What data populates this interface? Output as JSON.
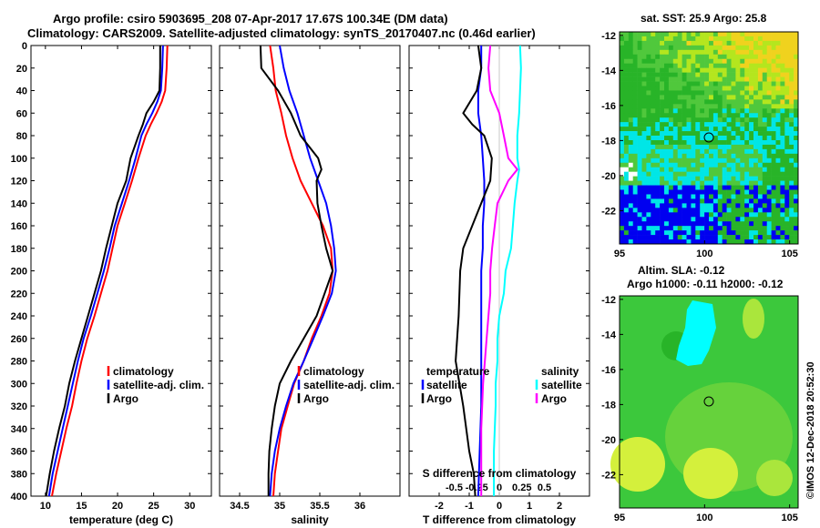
{
  "header": {
    "title_line1": "Argo profile: csiro 5903695_208 07-Apr-2017 17.67S 100.34E (DM data)",
    "title_line2": "Climatology: CARS2009. Satellite-adjusted climatology: synTS_20170407.nc (0.46d earlier)"
  },
  "map_sst": {
    "title": "sat. SST: 25.9 Argo: 25.8",
    "x_ticks": [
      "95",
      "100",
      "105"
    ],
    "y_ticks": [
      "-12",
      "-14",
      "-16",
      "-18",
      "-20",
      "-22"
    ]
  },
  "map_sla": {
    "title_line1": "Altim. SLA: -0.12",
    "title_line2": "Argo h1000: -0.11 h2000: -0.12",
    "x_ticks": [
      "95",
      "100",
      "105"
    ],
    "y_ticks": [
      "-12",
      "-14",
      "-16",
      "-18",
      "-20",
      "-22"
    ]
  },
  "credit": "©IMOS 12-Dec-2018 20:52:30",
  "colors": {
    "climatology": "#ff0000",
    "satellite": "#0000ff",
    "argo": "#000000",
    "sat_sal": "#00ffff",
    "argo_sal": "#ff00ff"
  },
  "chart_data": [
    {
      "type": "line",
      "id": "temperature",
      "xlabel": "temperature (deg C)",
      "ylabel": "",
      "xlim": [
        8,
        33
      ],
      "ylim": [
        400,
        0
      ],
      "x_ticks": [
        10,
        15,
        20,
        25,
        30
      ],
      "x_tick_labels": [
        "10",
        "15",
        "20",
        "25",
        "30"
      ],
      "y_ticks": [
        0,
        20,
        40,
        60,
        80,
        100,
        120,
        140,
        160,
        180,
        200,
        220,
        240,
        260,
        280,
        300,
        320,
        340,
        360,
        380,
        400
      ],
      "y_tick_labels": [
        "0",
        "20",
        "40",
        "60",
        "80",
        "100",
        "120",
        "140",
        "160",
        "180",
        "200",
        "220",
        "240",
        "260",
        "280",
        "300",
        "320",
        "340",
        "360",
        "380",
        "400"
      ],
      "legend": [
        "climatology",
        "satellite-adj. clim.",
        "Argo"
      ],
      "legend_position": "lower-right",
      "series": [
        {
          "name": "climatology",
          "color": "#ff0000",
          "depth": [
            0,
            20,
            40,
            50,
            60,
            70,
            80,
            100,
            120,
            140,
            160,
            180,
            200,
            220,
            240,
            260,
            280,
            300,
            320,
            340,
            360,
            380,
            400
          ],
          "values": [
            26.9,
            26.8,
            26.6,
            26.1,
            25.4,
            24.6,
            23.9,
            22.9,
            22.0,
            21.0,
            20.0,
            19.3,
            18.6,
            17.7,
            16.8,
            15.8,
            15.0,
            14.3,
            13.7,
            12.9,
            12.2,
            11.5,
            10.9
          ]
        },
        {
          "name": "satellite-adj. clim.",
          "color": "#0000ff",
          "depth": [
            0,
            20,
            40,
            50,
            60,
            70,
            80,
            100,
            120,
            140,
            160,
            180,
            200,
            220,
            240,
            260,
            280,
            300,
            320,
            340,
            360,
            380,
            400
          ],
          "values": [
            26.3,
            26.2,
            26.0,
            25.5,
            24.8,
            24.0,
            23.3,
            22.5,
            21.6,
            20.6,
            19.6,
            18.9,
            18.1,
            17.2,
            16.3,
            15.3,
            14.5,
            13.8,
            13.1,
            12.4,
            11.7,
            11.0,
            10.5
          ]
        },
        {
          "name": "Argo",
          "color": "#000000",
          "depth": [
            0,
            20,
            40,
            50,
            60,
            70,
            80,
            100,
            120,
            140,
            160,
            180,
            200,
            220,
            240,
            260,
            280,
            300,
            320,
            340,
            360,
            380,
            400
          ],
          "values": [
            25.9,
            25.9,
            25.8,
            25.0,
            24.0,
            23.5,
            22.9,
            21.8,
            21.2,
            20.0,
            19.2,
            18.4,
            17.7,
            16.8,
            15.9,
            15.0,
            14.1,
            13.3,
            12.7,
            11.9,
            11.2,
            10.6,
            10.1
          ]
        }
      ]
    },
    {
      "type": "line",
      "id": "salinity",
      "xlabel": "salinity",
      "xlim": [
        34.25,
        36.5
      ],
      "ylim": [
        400,
        0
      ],
      "x_ticks": [
        34.5,
        35,
        35.5,
        36
      ],
      "x_tick_labels": [
        "34.5",
        "35",
        "35.5",
        "36"
      ],
      "legend": [
        "climatology",
        "satellite-adj. clim.",
        "Argo"
      ],
      "legend_position": "lower-right",
      "series": [
        {
          "name": "climatology",
          "color": "#ff0000",
          "depth": [
            0,
            20,
            40,
            60,
            80,
            100,
            120,
            140,
            160,
            180,
            200,
            220,
            240,
            260,
            280,
            300,
            320,
            340,
            360,
            380,
            400
          ],
          "values": [
            34.88,
            34.92,
            34.95,
            35.02,
            35.08,
            35.16,
            35.26,
            35.4,
            35.54,
            35.64,
            35.66,
            35.62,
            35.52,
            35.4,
            35.3,
            35.18,
            35.1,
            35.02,
            34.98,
            34.94,
            34.92
          ]
        },
        {
          "name": "satellite-adj. clim.",
          "color": "#0000ff",
          "depth": [
            0,
            20,
            40,
            60,
            80,
            100,
            120,
            140,
            160,
            180,
            200,
            220,
            240,
            260,
            280,
            300,
            320,
            340,
            360,
            380,
            400
          ],
          "values": [
            35.0,
            35.05,
            35.12,
            35.22,
            35.3,
            35.38,
            35.48,
            35.58,
            35.64,
            35.68,
            35.7,
            35.65,
            35.54,
            35.42,
            35.3,
            35.17,
            35.08,
            35.0,
            34.94,
            34.9,
            34.88
          ]
        },
        {
          "name": "Argo",
          "color": "#000000",
          "depth": [
            0,
            20,
            40,
            60,
            80,
            100,
            110,
            120,
            140,
            160,
            180,
            190,
            200,
            220,
            240,
            260,
            280,
            300,
            320,
            340,
            360,
            380,
            400
          ],
          "values": [
            34.76,
            34.77,
            34.98,
            35.14,
            35.26,
            35.48,
            35.52,
            35.46,
            35.47,
            35.52,
            35.58,
            35.62,
            35.66,
            35.56,
            35.46,
            35.3,
            35.14,
            35.0,
            34.94,
            34.9,
            34.87,
            34.86,
            34.86
          ]
        }
      ]
    },
    {
      "type": "line",
      "id": "differences",
      "xlabel": "T difference from climatology",
      "xlabel_top": "S difference from climatology",
      "xlim": [
        -3,
        3
      ],
      "ylim": [
        400,
        0
      ],
      "x_ticks": [
        -2,
        -1,
        0,
        1,
        2
      ],
      "x_tick_labels": [
        "-2",
        "-1",
        "0",
        "1",
        "2"
      ],
      "s_ticks": [
        -0.5,
        -0.25,
        0,
        0.25,
        0.5
      ],
      "s_tick_labels": [
        "-0.5",
        "-0.25",
        "0",
        "0.25",
        "0.5"
      ],
      "legend_left_title": "temperature",
      "legend_right_title": "salinity",
      "legend_left": [
        "satellite",
        "Argo"
      ],
      "legend_right": [
        "satellite",
        "Argo"
      ],
      "series": [
        {
          "name": "T satellite",
          "color": "#0000ff",
          "depth": [
            0,
            20,
            40,
            60,
            80,
            100,
            120,
            140,
            160,
            180,
            200,
            240,
            280,
            320,
            360,
            400
          ],
          "values": [
            -0.6,
            -0.6,
            -0.7,
            -0.7,
            -0.6,
            -0.55,
            -0.5,
            -0.5,
            -0.55,
            -0.55,
            -0.6,
            -0.6,
            -0.6,
            -0.6,
            -0.65,
            -0.7
          ]
        },
        {
          "name": "T Argo",
          "color": "#000000",
          "depth": [
            0,
            20,
            40,
            60,
            70,
            80,
            100,
            120,
            140,
            160,
            180,
            200,
            240,
            280,
            320,
            360,
            380,
            400
          ],
          "values": [
            -0.7,
            -0.6,
            -0.75,
            -1.2,
            -0.9,
            -0.5,
            -0.25,
            -0.3,
            -0.6,
            -0.9,
            -1.2,
            -1.3,
            -1.35,
            -1.45,
            -1.2,
            -1.0,
            -0.85,
            -0.8
          ]
        },
        {
          "name": "S satellite",
          "color": "#00ffff",
          "depth": [
            0,
            20,
            40,
            60,
            80,
            100,
            110,
            120,
            140,
            160,
            180,
            200,
            220,
            240,
            260,
            280,
            300,
            320,
            360,
            400
          ],
          "values": [
            0.23,
            0.24,
            0.23,
            0.22,
            0.2,
            0.2,
            0.22,
            0.2,
            0.17,
            0.15,
            0.13,
            0.07,
            0.05,
            0.0,
            -0.02,
            -0.02,
            -0.04,
            -0.04,
            -0.06,
            -0.06
          ]
        },
        {
          "name": "S Argo",
          "color": "#ff00ff",
          "depth": [
            0,
            20,
            40,
            50,
            60,
            80,
            100,
            110,
            120,
            140,
            160,
            180,
            200,
            220,
            240,
            260,
            280,
            300,
            340,
            380,
            400
          ],
          "values": [
            -0.1,
            -0.12,
            -0.1,
            -0.05,
            0.0,
            0.05,
            0.1,
            0.2,
            0.1,
            -0.02,
            -0.05,
            -0.08,
            -0.1,
            -0.1,
            -0.12,
            -0.14,
            -0.16,
            -0.18,
            -0.2,
            -0.2,
            -0.2
          ]
        }
      ]
    }
  ]
}
